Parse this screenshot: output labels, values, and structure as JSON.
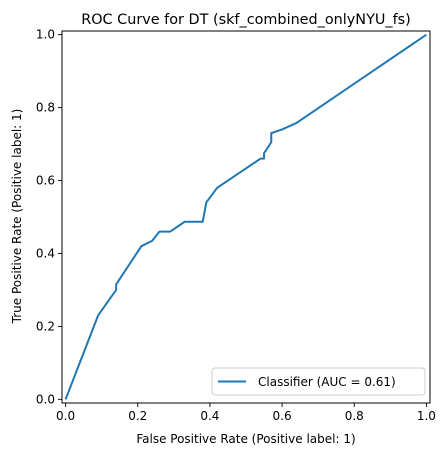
{
  "chart_data": {
    "type": "line",
    "title": "ROC Curve for DT (skf_combined_onlyNYU_fs)",
    "xlabel": "False Positive Rate (Positive label: 1)",
    "ylabel": "True Positive Rate (Positive label: 1)",
    "xlim": [
      -0.01,
      1.01
    ],
    "ylim": [
      -0.01,
      1.01
    ],
    "xticks": [
      "0.0",
      "0.2",
      "0.4",
      "0.6",
      "0.8",
      "1.0"
    ],
    "yticks": [
      "0.0",
      "0.2",
      "0.4",
      "0.6",
      "0.8",
      "1.0"
    ],
    "grid": false,
    "legend_position": "lower-right",
    "series": [
      {
        "name": "Classifier (AUC = 0.61)",
        "color": "#1f77b4",
        "x": [
          0.0,
          0.09,
          0.14,
          0.14,
          0.21,
          0.24,
          0.26,
          0.29,
          0.33,
          0.38,
          0.39,
          0.42,
          0.54,
          0.55,
          0.55,
          0.57,
          0.57,
          0.6,
          0.64,
          1.0
        ],
        "y": [
          0.0,
          0.23,
          0.3,
          0.315,
          0.42,
          0.435,
          0.46,
          0.46,
          0.487,
          0.487,
          0.54,
          0.58,
          0.66,
          0.66,
          0.675,
          0.705,
          0.73,
          0.74,
          0.758,
          1.0
        ]
      }
    ]
  }
}
